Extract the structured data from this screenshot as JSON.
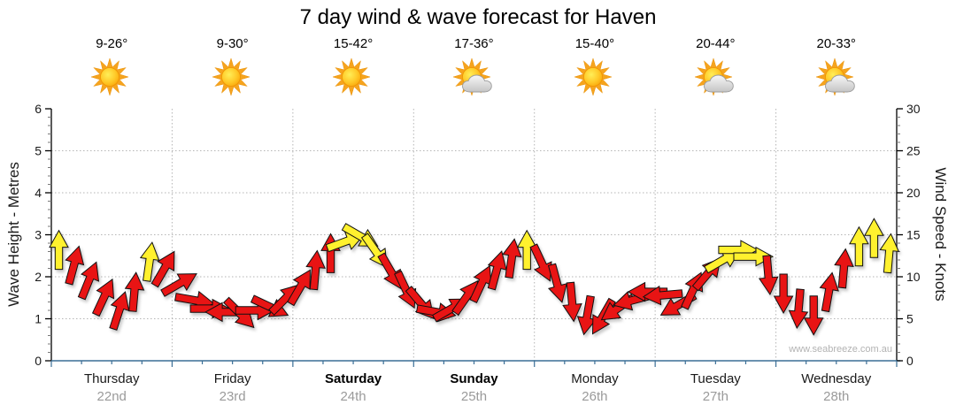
{
  "watermark": "www.seabreeze.com.au",
  "chart_data": {
    "type": "scatter",
    "subtype": "wind-direction-arrows",
    "title": "7 day wind & wave forecast for Haven",
    "left_axis": {
      "label": "Wave Height - Metres",
      "min": 0,
      "max": 6,
      "major_ticks": [
        0,
        1,
        2,
        3,
        4,
        5,
        6
      ]
    },
    "right_axis": {
      "label": "Wind Speed - Knots",
      "min": 0,
      "max": 30,
      "major_ticks": [
        0,
        5,
        10,
        15,
        20,
        25,
        30
      ]
    },
    "grid": "dotted horizontal lines each metre (1-5), dotted vertical lines at day boundaries",
    "days": [
      {
        "name": "Thursday",
        "date": "22nd",
        "temp": "9-26°",
        "icon": "sunny",
        "weekend": false
      },
      {
        "name": "Friday",
        "date": "23rd",
        "temp": "9-30°",
        "icon": "sunny",
        "weekend": false
      },
      {
        "name": "Saturday",
        "date": "24th",
        "temp": "15-42°",
        "icon": "sunny",
        "weekend": true
      },
      {
        "name": "Sunday",
        "date": "25th",
        "temp": "17-36°",
        "icon": "partly-cloudy",
        "weekend": true
      },
      {
        "name": "Monday",
        "date": "26th",
        "temp": "15-40°",
        "icon": "sunny",
        "weekend": false
      },
      {
        "name": "Tuesday",
        "date": "27th",
        "temp": "20-44°",
        "icon": "partly-cloudy",
        "weekend": false
      },
      {
        "name": "Wednesday",
        "date": "28th",
        "temp": "20-33°",
        "icon": "partly-cloudy",
        "weekend": false
      }
    ],
    "arrows_per_day": 8,
    "arrow_format": [
      "wind_speed_knots",
      "direction_deg_0_is_up",
      "color"
    ],
    "arrows": [
      [
        13.2,
        0,
        "y"
      ],
      [
        11.4,
        15,
        "r"
      ],
      [
        9.6,
        22,
        "r"
      ],
      [
        7.6,
        25,
        "r"
      ],
      [
        6.0,
        18,
        "r"
      ],
      [
        8.2,
        5,
        "r"
      ],
      [
        11.8,
        8,
        "y"
      ],
      [
        11.0,
        30,
        "r"
      ],
      [
        9.2,
        60,
        "r"
      ],
      [
        7.2,
        100,
        "r"
      ],
      [
        6.2,
        90,
        "r"
      ],
      [
        5.8,
        270,
        "r"
      ],
      [
        5.6,
        135,
        "r"
      ],
      [
        6.0,
        90,
        "r"
      ],
      [
        6.4,
        115,
        "r"
      ],
      [
        7.4,
        45,
        "r"
      ],
      [
        8.8,
        30,
        "r"
      ],
      [
        10.8,
        5,
        "r"
      ],
      [
        12.8,
        0,
        "r"
      ],
      [
        14.2,
        70,
        "y"
      ],
      [
        14.8,
        120,
        "y"
      ],
      [
        13.0,
        145,
        "y"
      ],
      [
        10.6,
        150,
        "r"
      ],
      [
        8.4,
        155,
        "r"
      ],
      [
        6.8,
        140,
        "r"
      ],
      [
        5.8,
        100,
        "r"
      ],
      [
        6.2,
        60,
        "r"
      ],
      [
        7.6,
        35,
        "r"
      ],
      [
        9.2,
        25,
        "r"
      ],
      [
        10.8,
        15,
        "r"
      ],
      [
        12.2,
        8,
        "r"
      ],
      [
        13.2,
        0,
        "y"
      ],
      [
        11.6,
        155,
        "r"
      ],
      [
        9.2,
        165,
        "r"
      ],
      [
        7.0,
        175,
        "r"
      ],
      [
        5.4,
        190,
        "r"
      ],
      [
        5.2,
        210,
        "r"
      ],
      [
        6.2,
        235,
        "r"
      ],
      [
        7.2,
        255,
        "r"
      ],
      [
        8.2,
        270,
        "r"
      ],
      [
        7.8,
        265,
        "r"
      ],
      [
        6.6,
        240,
        "r"
      ],
      [
        8.4,
        25,
        "r"
      ],
      [
        10.4,
        40,
        "r"
      ],
      [
        12.0,
        60,
        "y"
      ],
      [
        13.2,
        90,
        "y"
      ],
      [
        12.4,
        90,
        "y"
      ],
      [
        10.2,
        175,
        "r"
      ],
      [
        8.0,
        180,
        "r"
      ],
      [
        6.2,
        185,
        "r"
      ],
      [
        5.4,
        180,
        "r"
      ],
      [
        8.2,
        10,
        "r"
      ],
      [
        11.0,
        5,
        "r"
      ],
      [
        13.6,
        0,
        "y"
      ],
      [
        14.6,
        0,
        "y"
      ],
      [
        12.8,
        5,
        "y"
      ]
    ],
    "colors": {
      "red_arrow": "#e81414",
      "yellow_arrow": "#fff12e",
      "arrow_outline": "#111111",
      "grid_dotted": "#b5b5b5",
      "axis_black": "#000000",
      "axis_bottom_blue": "#3a6e96",
      "minor_tick": "#777777",
      "date_gray": "#9a9a9a",
      "watermark_gray": "#b3b3b3",
      "sun_orange": "#f6a41e",
      "cloud_gray": "#d9d9d9"
    }
  }
}
